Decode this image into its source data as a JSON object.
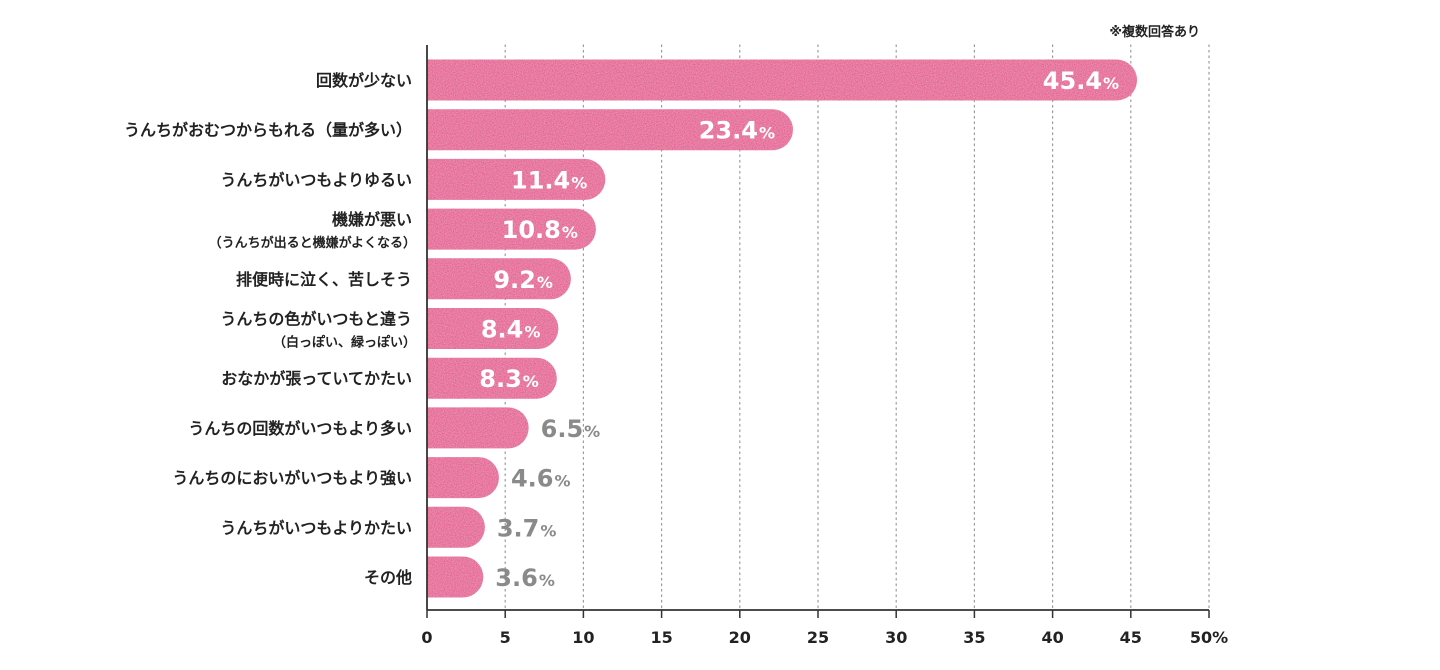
{
  "note": "※複数回答あり",
  "chart_data": {
    "type": "bar",
    "orientation": "horizontal",
    "title": "",
    "xlabel": "",
    "ylabel": "",
    "xlim": [
      0,
      50
    ],
    "x_ticks": [
      "0",
      "5",
      "10",
      "15",
      "20",
      "25",
      "30",
      "35",
      "40",
      "45",
      "50%"
    ],
    "grid": "vertical-dotted",
    "bar_color": "#e4528d",
    "value_color_inside": "#ffffff",
    "value_color_outside": "#8a8a8a",
    "value_suffix": "%",
    "categories": [
      {
        "label": "回数が少ない",
        "sub": "",
        "value": 45.4,
        "value_text": "45.4"
      },
      {
        "label": "うんちがおむつからもれる（量が多い）",
        "sub": "",
        "value": 23.4,
        "value_text": "23.4"
      },
      {
        "label": "うんちがいつもよりゆるい",
        "sub": "",
        "value": 11.4,
        "value_text": "11.4"
      },
      {
        "label": "機嫌が悪い",
        "sub": "（うんちが出ると機嫌がよくなる）",
        "value": 10.8,
        "value_text": "10.8"
      },
      {
        "label": "排便時に泣く、苦しそう",
        "sub": "",
        "value": 9.2,
        "value_text": "9.2"
      },
      {
        "label": "うんちの色がいつもと違う",
        "sub": "（白っぽい、緑っぽい）",
        "value": 8.4,
        "value_text": "8.4"
      },
      {
        "label": "おなかが張っていてかたい",
        "sub": "",
        "value": 8.3,
        "value_text": "8.3"
      },
      {
        "label": "うんちの回数がいつもより多い",
        "sub": "",
        "value": 6.5,
        "value_text": "6.5"
      },
      {
        "label": "うんちのにおいがいつもより強い",
        "sub": "",
        "value": 4.6,
        "value_text": "4.6"
      },
      {
        "label": "うんちがいつもよりかたい",
        "sub": "",
        "value": 3.7,
        "value_text": "3.7"
      },
      {
        "label": "その他",
        "sub": "",
        "value": 3.6,
        "value_text": "3.6"
      }
    ]
  }
}
